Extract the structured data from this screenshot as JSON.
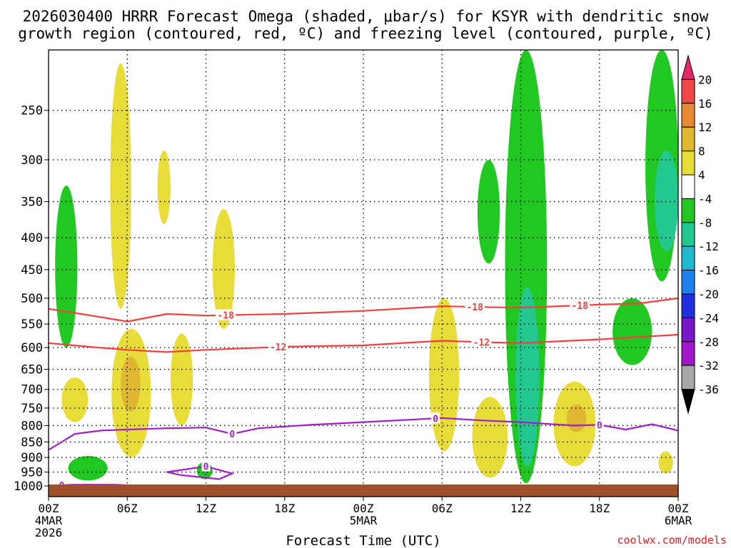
{
  "chart_data": {
    "type": "heatmap",
    "title_line1": "2026030400 HRRR Forecast Omega (shaded, μbar/s) for KSYR with dendritic snow",
    "title_line2": "growth region (contoured, red, ºC) and freezing level (contoured, purple, ºC)",
    "xlabel": "Forecast Time (UTC)",
    "ylabel": "",
    "watermark": "coolwx.com/models",
    "x_axis": {
      "unit": "forecast hour",
      "range": [
        0,
        48
      ],
      "ticks": [
        {
          "hour": 0,
          "label": "00Z",
          "sub1": "4MAR",
          "sub2": "2026"
        },
        {
          "hour": 6,
          "label": "06Z"
        },
        {
          "hour": 12,
          "label": "12Z"
        },
        {
          "hour": 18,
          "label": "18Z"
        },
        {
          "hour": 24,
          "label": "00Z",
          "sub1": "5MAR"
        },
        {
          "hour": 30,
          "label": "06Z"
        },
        {
          "hour": 36,
          "label": "12Z"
        },
        {
          "hour": 42,
          "label": "18Z"
        },
        {
          "hour": 48,
          "label": "00Z",
          "sub1": "6MAR"
        }
      ]
    },
    "y_axis": {
      "unit": "hPa",
      "scale": "log",
      "range": [
        1040,
        200
      ],
      "ticks": [
        250,
        300,
        350,
        400,
        450,
        500,
        550,
        600,
        650,
        700,
        750,
        800,
        850,
        900,
        950,
        1000
      ]
    },
    "colorbar": {
      "unit": "μbar/s",
      "labels": [
        "20",
        "16",
        "12",
        "8",
        "4",
        "-4",
        "-8",
        "-12",
        "-16",
        "-20",
        "-24",
        "-28",
        "-32",
        "-36"
      ],
      "colors": [
        "#e8286a",
        "#f04848",
        "#e88830",
        "#e0b830",
        "#e8dc38",
        "#ffffff",
        "#22c822",
        "#22c890",
        "#20b8d0",
        "#2080f0",
        "#2030e0",
        "#7818c8",
        "#a018c8",
        "#a8a8a8",
        "#000000"
      ]
    },
    "omega_regions": [
      {
        "name": "ascent-early-0-2h-upper",
        "class": -8,
        "t": [
          0.5,
          2.2
        ],
        "p": [
          330,
          600
        ]
      },
      {
        "name": "ascent-early-2-3h-low",
        "class": -8,
        "t": [
          1.5,
          4.5
        ],
        "p": [
          895,
          980
        ]
      },
      {
        "name": "sink-03h-mid",
        "class": 4,
        "t": [
          1.0,
          3.0
        ],
        "p": [
          670,
          790
        ]
      },
      {
        "name": "sink-06h-upper",
        "class": 4,
        "t": [
          4.7,
          6.3
        ],
        "p": [
          210,
          520
        ]
      },
      {
        "name": "sink-06h-mid",
        "class": 4,
        "t": [
          4.8,
          7.8
        ],
        "p": [
          560,
          900
        ]
      },
      {
        "name": "sink-06h-core",
        "class": 8,
        "t": [
          5.5,
          7.0
        ],
        "p": [
          620,
          760
        ]
      },
      {
        "name": "sink-09h-upper",
        "class": 4,
        "t": [
          8.3,
          9.3
        ],
        "p": [
          290,
          380
        ]
      },
      {
        "name": "sink-10h-mid",
        "class": 4,
        "t": [
          9.3,
          11.0
        ],
        "p": [
          570,
          800
        ]
      },
      {
        "name": "sink-13h-upper",
        "class": 4,
        "t": [
          12.5,
          14.2
        ],
        "p": [
          360,
          560
        ]
      },
      {
        "name": "ascent-12h-low",
        "class": -8,
        "t": [
          11.3,
          12.5
        ],
        "p": [
          915,
          975
        ]
      },
      {
        "name": "sink-30h-mid",
        "class": 4,
        "t": [
          29.0,
          31.3
        ],
        "p": [
          500,
          880
        ]
      },
      {
        "name": "sink-34h-mid",
        "class": 4,
        "t": [
          32.3,
          35.0
        ],
        "p": [
          720,
          970
        ]
      },
      {
        "name": "ascent-36h-column",
        "class": -8,
        "t": [
          34.8,
          38.0
        ],
        "p": [
          200,
          990
        ]
      },
      {
        "name": "ascent-36h-core",
        "class": -12,
        "t": [
          35.6,
          37.4
        ],
        "p": [
          480,
          930
        ]
      },
      {
        "name": "ascent-33h-upper",
        "class": -8,
        "t": [
          32.7,
          34.4
        ],
        "p": [
          300,
          440
        ]
      },
      {
        "name": "sink-39h-mid",
        "class": 4,
        "t": [
          38.5,
          41.7
        ],
        "p": [
          680,
          930
        ]
      },
      {
        "name": "sink-40h-core",
        "class": 8,
        "t": [
          39.5,
          41.0
        ],
        "p": [
          740,
          820
        ]
      },
      {
        "name": "ascent-44h-mid",
        "class": -8,
        "t": [
          43.0,
          46.0
        ],
        "p": [
          500,
          640
        ]
      },
      {
        "name": "ascent-47h-upper",
        "class": -8,
        "t": [
          45.5,
          48.0
        ],
        "p": [
          200,
          470
        ]
      },
      {
        "name": "ascent-47h-core",
        "class": -12,
        "t": [
          46.2,
          48.0
        ],
        "p": [
          290,
          420
        ]
      },
      {
        "name": "sink-47h-low",
        "class": 4,
        "t": [
          46.5,
          47.6
        ],
        "p": [
          880,
          955
        ]
      }
    ],
    "contours": {
      "dendritic": [
        {
          "label": "-18",
          "color": "#f04040",
          "label_at_hours": [
            13.5,
            32.5,
            40.5
          ],
          "points": [
            [
              0,
              520
            ],
            [
              3,
              532
            ],
            [
              6,
              545
            ],
            [
              9,
              530
            ],
            [
              12,
              533
            ],
            [
              18,
              530
            ],
            [
              24,
              524
            ],
            [
              30,
              515
            ],
            [
              36,
              518
            ],
            [
              42,
              512
            ],
            [
              45,
              510
            ],
            [
              48,
              500
            ]
          ]
        },
        {
          "label": "-12",
          "color": "#f04040",
          "label_at_hours": [
            17.5,
            33.0
          ],
          "points": [
            [
              0,
              590
            ],
            [
              3,
              598
            ],
            [
              6,
              605
            ],
            [
              9,
              610
            ],
            [
              12,
              605
            ],
            [
              18,
              598
            ],
            [
              24,
              595
            ],
            [
              30,
              585
            ],
            [
              33,
              588
            ],
            [
              36,
              590
            ],
            [
              42,
              582
            ],
            [
              48,
              572
            ]
          ]
        }
      ],
      "freezing": [
        {
          "label": "0",
          "color": "#a020c8",
          "label_at_hours": [
            14,
            29.5,
            42
          ],
          "points": [
            [
              0,
              875
            ],
            [
              1,
              850
            ],
            [
              2,
              825
            ],
            [
              4,
              815
            ],
            [
              6,
              812
            ],
            [
              9,
              808
            ],
            [
              12,
              806
            ],
            [
              14,
              825
            ],
            [
              16,
              808
            ],
            [
              20,
              798
            ],
            [
              24,
              790
            ],
            [
              30,
              778
            ],
            [
              33,
              785
            ],
            [
              36,
              790
            ],
            [
              40,
              800
            ],
            [
              42,
              798
            ],
            [
              44,
              812
            ],
            [
              46,
              796
            ],
            [
              48,
              815
            ]
          ]
        },
        {
          "label": "0",
          "color": "#a020c8",
          "label_at_hours": [
            1
          ],
          "points": [
            [
              0,
              998
            ],
            [
              2,
              995
            ],
            [
              5,
              995
            ],
            [
              9,
              1003
            ]
          ]
        },
        {
          "label": "0",
          "color": "#a020c8",
          "label_at_hours": [
            12
          ],
          "points": [
            [
              9,
              950
            ],
            [
              12,
              930
            ],
            [
              14,
              955
            ],
            [
              13,
              975
            ],
            [
              10,
              960
            ],
            [
              9,
              950
            ]
          ]
        }
      ]
    }
  }
}
